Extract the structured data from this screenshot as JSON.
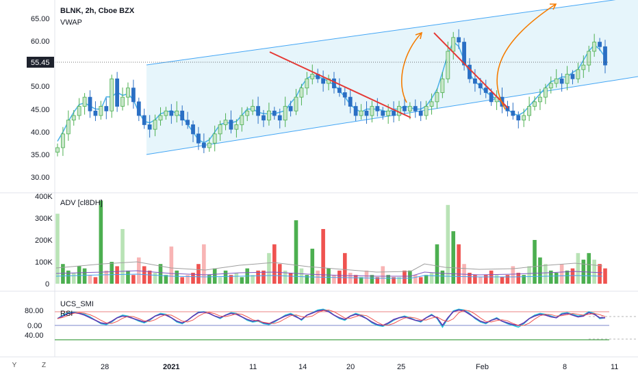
{
  "header": {
    "title": "BLNK, 2h, Cboe BZX",
    "vwap_label": "VWAP",
    "adv_label": "ADV [cl8DH]",
    "ucs_label": "UCS_SMI",
    "rsi_label": "RSI"
  },
  "price_axis": {
    "ticks": [
      "65.00",
      "60.00",
      "55.45",
      "50.00",
      "45.00",
      "40.00",
      "35.00",
      "30.00"
    ],
    "current_price": "55.45"
  },
  "volume_axis": {
    "ticks": [
      "400K",
      "300K",
      "200K",
      "100K",
      "0"
    ]
  },
  "osc_axis": {
    "ticks": [
      "80.00",
      "0.00",
      "40.00"
    ]
  },
  "time_axis": {
    "labels": [
      "28",
      "2021",
      "11",
      "14",
      "20",
      "25",
      "Feb",
      "8",
      "11"
    ]
  },
  "corner": {
    "y_label": "Y",
    "z_label": "Z"
  },
  "colors": {
    "up": "#4caf50",
    "down": "#2a6fc4",
    "up_light": "#b9e3b6",
    "vol_up": "#4caf50",
    "vol_down": "#ef5350",
    "vol_up_light": "#b9e3b6",
    "vol_down_light": "#f8b4b4",
    "vwap": "#4fb3e8",
    "channel": "#42a5f5",
    "channel_fill": "#e3f4fb",
    "trend": "#e53935",
    "arrow": "#f57c00"
  },
  "chart_data": [
    {
      "type": "candlestick",
      "title": "BLNK, 2h, Cboe BZX",
      "ylim": [
        27,
        68
      ],
      "ylabel": "",
      "series": [
        {
          "name": "VWAP",
          "type": "line"
        }
      ],
      "close": [
        37,
        40,
        43,
        44,
        46,
        48,
        45,
        44,
        46,
        45,
        52,
        46,
        48,
        50,
        47,
        44,
        42,
        41,
        43,
        44,
        45,
        44,
        45,
        43,
        42,
        40,
        38,
        37,
        38,
        40,
        42,
        43,
        41,
        42,
        44,
        45,
        46,
        44,
        43,
        45,
        44,
        43,
        46,
        45,
        48,
        50,
        52,
        53,
        52,
        51,
        52,
        50,
        49,
        48,
        46,
        44,
        45,
        44,
        46,
        45,
        44,
        45,
        44,
        46,
        45,
        46,
        45,
        44,
        46,
        47,
        49,
        52,
        58,
        61,
        60,
        55,
        52,
        51,
        50,
        49,
        47,
        48,
        46,
        45,
        44,
        43,
        44,
        46,
        47,
        48,
        50,
        51,
        52,
        51,
        53,
        52,
        54,
        55,
        58,
        60,
        59,
        55
      ],
      "chart_note": "approximate price closes, one per candle"
    },
    {
      "type": "bar",
      "title": "ADV [cl8DH]",
      "ylim": [
        0,
        400000
      ],
      "values": [
        320000,
        90000,
        60000,
        50000,
        80000,
        70000,
        40000,
        30000,
        380000,
        60000,
        100000,
        80000,
        250000,
        60000,
        40000,
        120000,
        80000,
        60000,
        50000,
        90000,
        40000,
        170000,
        60000,
        30000,
        40000,
        50000,
        90000,
        180000,
        40000,
        70000,
        30000,
        60000,
        40000,
        50000,
        30000,
        70000,
        40000,
        60000,
        60000,
        140000,
        180000,
        90000,
        60000,
        50000,
        290000,
        70000,
        40000,
        160000,
        60000,
        250000,
        70000,
        40000,
        60000,
        140000,
        50000,
        40000,
        30000,
        60000,
        40000,
        30000,
        80000,
        40000,
        30000,
        30000,
        60000,
        60000,
        40000,
        30000,
        40000,
        50000,
        180000,
        60000,
        360000,
        240000,
        180000,
        90000,
        50000,
        40000,
        30000,
        40000,
        60000,
        40000,
        30000,
        40000,
        80000,
        50000,
        40000,
        80000,
        200000,
        120000,
        90000,
        60000,
        50000,
        90000,
        60000,
        70000,
        140000,
        110000,
        140000,
        110000,
        90000,
        70000
      ]
    },
    {
      "type": "line",
      "title": "",
      "series": [
        {
          "name": "UCS_SMI",
          "values": [
            40,
            60,
            75,
            78,
            72,
            65,
            50,
            30,
            10,
            5,
            20,
            45,
            60,
            55,
            40,
            25,
            15,
            30,
            55,
            70,
            65,
            45,
            20,
            10,
            30,
            55,
            78,
            80,
            70,
            55,
            40,
            60,
            75,
            70,
            50,
            30,
            20,
            25,
            10,
            5,
            20,
            40,
            60,
            70,
            55,
            30,
            60,
            75,
            90,
            95,
            85,
            60,
            40,
            30,
            55,
            70,
            60,
            40,
            15,
            0,
            -5,
            10,
            30,
            45,
            55,
            45,
            30,
            20,
            45,
            65,
            40,
            -10,
            40,
            85,
            95,
            90,
            70,
            40,
            20,
            10,
            30,
            45,
            25,
            10,
            0,
            -10,
            10,
            40,
            60,
            70,
            65,
            55,
            45,
            70,
            75,
            65,
            55,
            60,
            80,
            70,
            40,
            45
          ]
        },
        {
          "name": "RSI",
          "values": [
            40,
            55,
            70,
            75,
            70,
            60,
            45,
            30,
            15,
            10,
            25,
            45,
            55,
            50,
            40,
            30,
            20,
            35,
            55,
            65,
            60,
            45,
            25,
            15,
            30,
            55,
            75,
            78,
            70,
            55,
            45,
            60,
            70,
            65,
            50,
            35,
            25,
            30,
            15,
            10,
            25,
            40,
            55,
            65,
            50,
            35,
            60,
            72,
            85,
            90,
            80,
            60,
            45,
            35,
            55,
            65,
            55,
            40,
            20,
            5,
            0,
            15,
            35,
            45,
            50,
            40,
            30,
            25,
            45,
            60,
            45,
            0,
            45,
            80,
            90,
            85,
            65,
            45,
            25,
            15,
            30,
            40,
            25,
            15,
            5,
            0,
            15,
            40,
            55,
            65,
            60,
            50,
            45,
            65,
            70,
            60,
            50,
            55,
            75,
            65,
            45,
            45
          ]
        }
      ],
      "hlines": [
        80,
        0,
        40
      ]
    }
  ]
}
